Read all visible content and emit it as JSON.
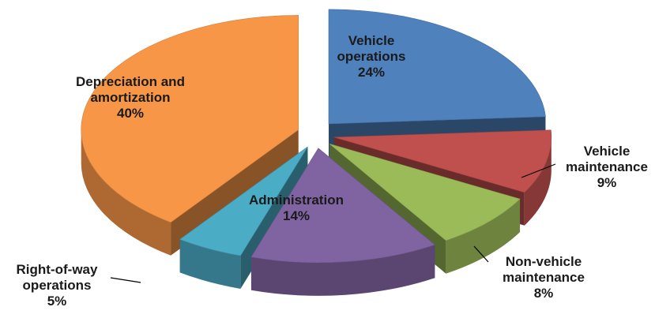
{
  "chart_data": {
    "type": "pie",
    "categories": [
      "Vehicle operations",
      "Vehicle maintenance",
      "Non-vehicle maintenance",
      "Administration",
      "Right-of-way operations",
      "Depreciation and amortization"
    ],
    "values": [
      24,
      9,
      8,
      14,
      5,
      40
    ],
    "value_labels": [
      "24%",
      "9%",
      "8%",
      "14%",
      "5%",
      "40%"
    ],
    "colors": [
      "#4f81bd",
      "#c0504d",
      "#9bbb59",
      "#8064a2",
      "#4bacc6",
      "#f79646"
    ]
  }
}
